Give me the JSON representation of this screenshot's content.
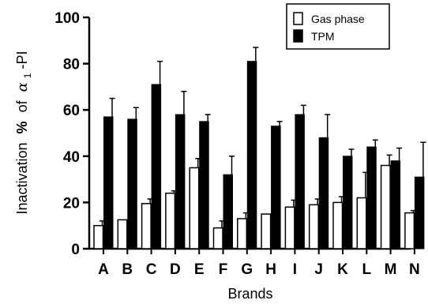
{
  "chart_data": {
    "type": "bar",
    "title": "",
    "xlabel": "Brands",
    "ylabel_main": "Inactivation",
    "ylabel_pct": "%",
    "ylabel_of": "of",
    "ylabel_alpha": "α",
    "ylabel_sub": "1",
    "ylabel_tail": "-PI",
    "ylim": [
      0,
      100
    ],
    "yticks": [
      0,
      20,
      40,
      60,
      80,
      100
    ],
    "categories": [
      "A",
      "B",
      "C",
      "D",
      "E",
      "F",
      "G",
      "H",
      "I",
      "J",
      "K",
      "L",
      "M",
      "N"
    ],
    "legend_position": "top-right",
    "grid": false,
    "series": [
      {
        "name": "Gas phase",
        "color": "#ffffff",
        "values": [
          10,
          12.5,
          19.5,
          24,
          35,
          9,
          13,
          15,
          18,
          19,
          20,
          22,
          36,
          15.5
        ],
        "errors": [
          2,
          0,
          2,
          1,
          4,
          3,
          2.5,
          0,
          3,
          2.5,
          2.5,
          11,
          4.5,
          1
        ]
      },
      {
        "name": "TPM",
        "color": "#000000",
        "values": [
          57,
          56,
          71,
          58,
          55,
          32,
          81,
          53,
          58,
          48,
          40,
          44,
          38,
          31
        ],
        "errors": [
          8,
          5,
          10,
          10,
          3,
          8,
          6,
          2,
          4,
          10,
          3,
          3,
          5.5,
          15
        ]
      }
    ]
  }
}
